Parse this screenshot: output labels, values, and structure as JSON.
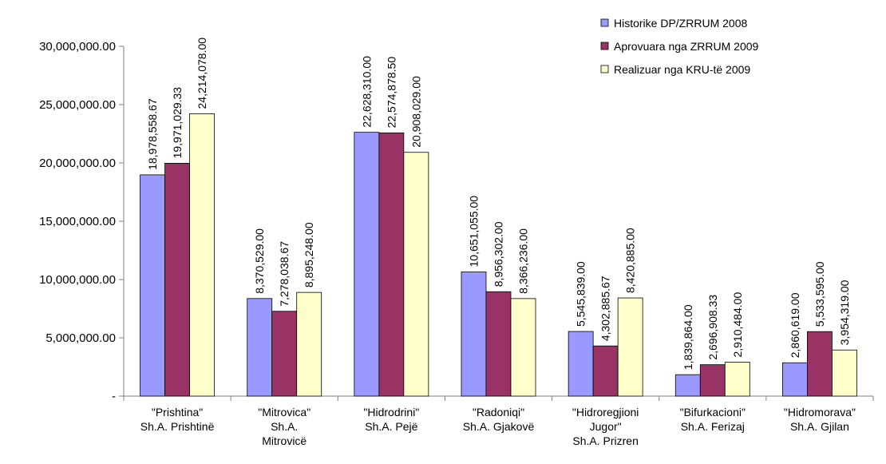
{
  "chart_data": {
    "type": "bar",
    "title": "",
    "xlabel": "",
    "ylabel": "",
    "ylim": [
      0,
      30000000
    ],
    "ytick_values": [
      0,
      5000000,
      10000000,
      15000000,
      20000000,
      25000000,
      30000000
    ],
    "ytick_labels": [
      "-",
      "5,000,000.00",
      "10,000,000.00",
      "15,000,000.00",
      "20,000,000.00",
      "25,000,000.00",
      "30,000,000.00"
    ],
    "grid": false,
    "legend_position": "top-right",
    "categories": [
      [
        "\"Prishtina\"",
        "Sh.A. Prishtinë"
      ],
      [
        "\"Mitrovica\"",
        "Sh.A.",
        "Mitrovicë"
      ],
      [
        "\"Hidrodrini\"",
        "Sh.A. Pejë"
      ],
      [
        "\"Radoniqi\"",
        "Sh.A. Gjakovë"
      ],
      [
        "\"Hidroregjioni",
        "Jugor\"",
        "Sh.A. Prizren"
      ],
      [
        "\"Bifurkacioni\"",
        "Sh.A. Ferizaj"
      ],
      [
        "\"Hidromorava\"",
        "Sh.A. Gjilan"
      ]
    ],
    "series": [
      {
        "name": "Historike DP/ZRRUM 2008",
        "color": "#9999ff",
        "values": [
          18978558.67,
          8370529.0,
          22628310.0,
          10651055.0,
          5545839.0,
          1839864.0,
          2860619.0
        ],
        "labels": [
          "18,978,558.67",
          "8,370,529.00",
          "22,628,310.00",
          "10,651,055.00",
          "5,545,839.00",
          "1,839,864.00",
          "2,860,619.00"
        ]
      },
      {
        "name": "Aprovuara nga ZRRUM 2009",
        "color": "#993366",
        "values": [
          19971029.33,
          7278038.67,
          22574878.5,
          8956302.0,
          4302885.67,
          2696908.33,
          5533595.0
        ],
        "labels": [
          "19,971,029.33",
          "7,278,038.67",
          "22,574,878.50",
          "8,956,302.00",
          "4,302,885.67",
          "2,696,908.33",
          "5,533,595.00"
        ]
      },
      {
        "name": "Realizuar nga KRU-të 2009",
        "color": "#ffffcc",
        "values": [
          24214078.0,
          8895248.0,
          20908029.0,
          8366236.0,
          8420885.0,
          2910484.0,
          3954319.0
        ],
        "labels": [
          "24,214,078.00",
          "8,895,248.00",
          "20,908,029.00",
          "8,366,236.00",
          "8,420,885.00",
          "2,910,484.00",
          "3,954,319.00"
        ]
      }
    ]
  }
}
